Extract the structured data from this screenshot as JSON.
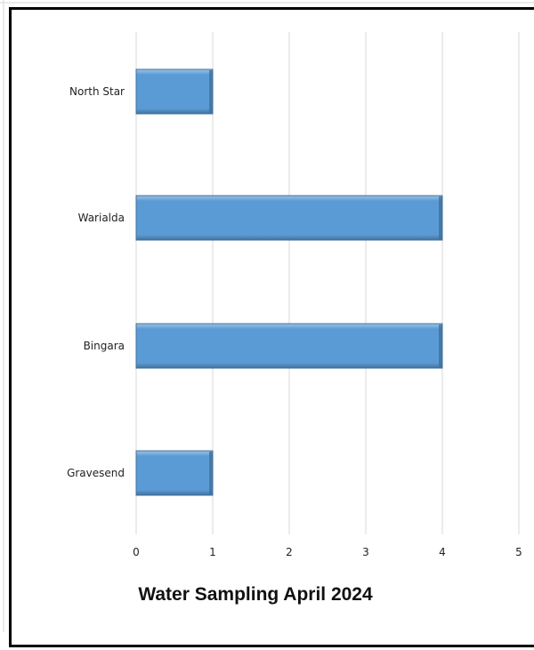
{
  "chart_data": {
    "type": "bar",
    "orientation": "horizontal",
    "title": "Water Sampling April 2024",
    "categories": [
      "North Star",
      "Warialda",
      "Bingara",
      "Gravesend"
    ],
    "values": [
      1,
      4,
      4,
      1
    ],
    "xlim": [
      0,
      5
    ],
    "xticks": [
      "0",
      "1",
      "2",
      "3",
      "4",
      "5"
    ],
    "xlabel": "",
    "ylabel": "",
    "grid": "vertical",
    "legend": "none",
    "colors": {
      "bar_fill": "#5b9bd5",
      "bar_edge": "#41719c",
      "bar_highlight": "#9dc3e6",
      "grid": "#d9d9d9"
    }
  }
}
